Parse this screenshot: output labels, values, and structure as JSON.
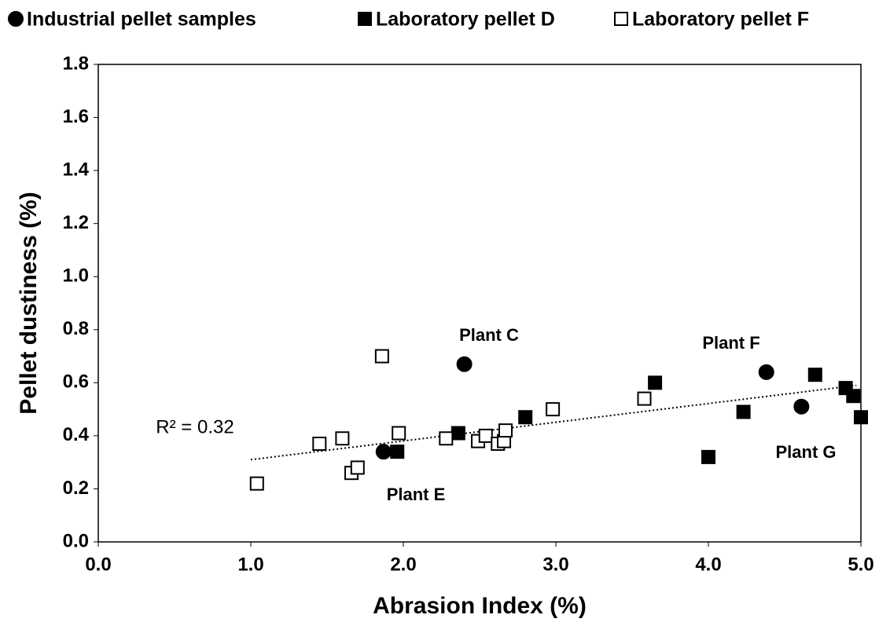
{
  "chart_data": {
    "type": "scatter",
    "xlabel": "Abrasion Index (%)",
    "ylabel": "Pellet dustiness (%)",
    "xlim": [
      0,
      5
    ],
    "ylim": [
      0,
      1.8
    ],
    "xticks": [
      {
        "value": 0,
        "label": "0.0"
      },
      {
        "value": 1,
        "label": "1.0"
      },
      {
        "value": 2,
        "label": "2.0"
      },
      {
        "value": 3,
        "label": "3.0"
      },
      {
        "value": 4,
        "label": "4.0"
      },
      {
        "value": 5,
        "label": "5.0"
      }
    ],
    "yticks": [
      {
        "value": 0,
        "label": "0.0"
      },
      0.2,
      0.4,
      0.6,
      0.8,
      {
        "value": 1,
        "label": "1.0"
      },
      1.2,
      1.4,
      1.6,
      1.8
    ],
    "legend": "top",
    "series": [
      {
        "name": "Industrial pellet samples",
        "color": "#000000",
        "marker": "circle",
        "fill": "#000000",
        "x": [
          1.87,
          2.4,
          4.38,
          4.61
        ],
        "values": [
          0.34,
          0.67,
          0.64,
          0.51
        ]
      },
      {
        "name": "Laboratory pellet D",
        "color": "#000000",
        "marker": "square",
        "fill": "#000000",
        "x": [
          1.96,
          2.36,
          2.8,
          3.65,
          4.0,
          4.23,
          4.7,
          4.9,
          4.95,
          5.0
        ],
        "values": [
          0.34,
          0.41,
          0.47,
          0.6,
          0.32,
          0.49,
          0.63,
          0.58,
          0.55,
          0.47
        ]
      },
      {
        "name": "Laboratory pellet F",
        "color": "#000000",
        "marker": "square",
        "fill": "#ffffff",
        "x": [
          1.04,
          1.45,
          1.6,
          1.66,
          1.7,
          1.86,
          1.97,
          2.28,
          2.49,
          2.54,
          2.62,
          2.66,
          2.67,
          2.98,
          3.58
        ],
        "values": [
          0.22,
          0.37,
          0.39,
          0.26,
          0.28,
          0.7,
          0.41,
          0.39,
          0.38,
          0.4,
          0.37,
          0.38,
          0.42,
          0.5,
          0.54
        ]
      }
    ],
    "trendline": {
      "x": [
        1.0,
        4.97
      ],
      "values": [
        0.31,
        0.59
      ]
    },
    "annotations": [
      "Plant C",
      "Plant F",
      "Plant E",
      "Plant G",
      "R² = 0.32"
    ]
  }
}
